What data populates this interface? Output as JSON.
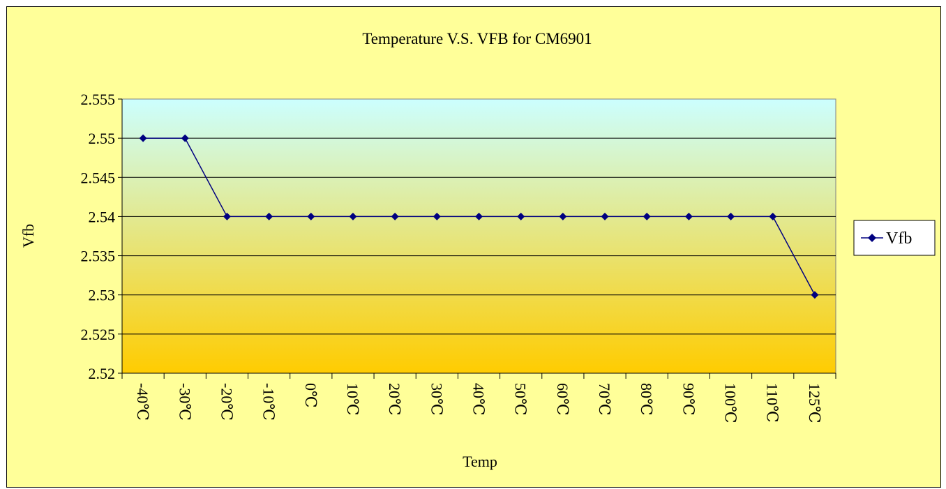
{
  "chart_data": {
    "type": "line",
    "title": "Temperature V.S. VFB for CM6901",
    "xlabel": "Temp",
    "ylabel": "Vfb",
    "categories": [
      "-40℃",
      "-30℃",
      "-20℃",
      "-10℃",
      "0℃",
      "10℃",
      "20℃",
      "30℃",
      "40℃",
      "50℃",
      "60℃",
      "70℃",
      "80℃",
      "90℃",
      "100℃",
      "110℃",
      "125℃"
    ],
    "series": [
      {
        "name": "Vfb",
        "values": [
          2.55,
          2.55,
          2.54,
          2.54,
          2.54,
          2.54,
          2.54,
          2.54,
          2.54,
          2.54,
          2.54,
          2.54,
          2.54,
          2.54,
          2.54,
          2.54,
          2.53
        ],
        "color": "#000080"
      }
    ],
    "ylim": [
      2.52,
      2.555
    ],
    "yticks": [
      "2.52",
      "2.525",
      "2.53",
      "2.535",
      "2.54",
      "2.545",
      "2.55",
      "2.555"
    ],
    "grid": true,
    "legend": "right",
    "colors": {
      "chart_background": "#ffff99",
      "plot_gradient_top": "#ccffff",
      "plot_gradient_bottom": "#ffcc00",
      "line": "#000080"
    }
  }
}
